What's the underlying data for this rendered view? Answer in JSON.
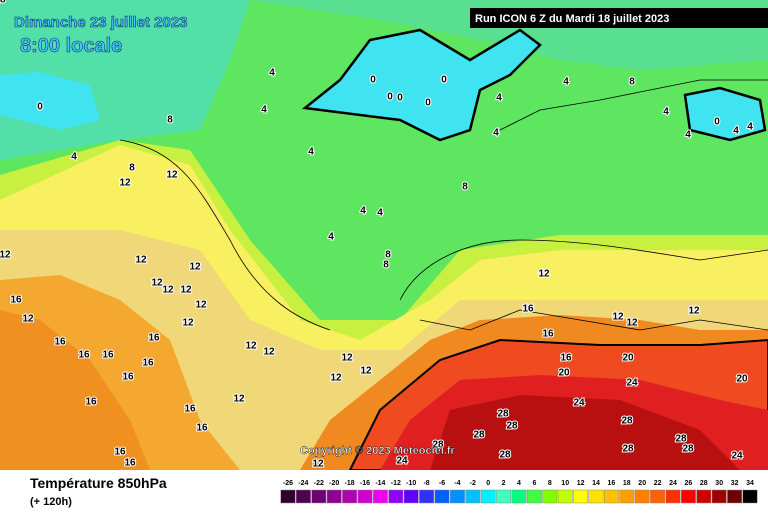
{
  "header": {
    "date": "Dimanche 23 juillet 2023",
    "time": "8:00 locale",
    "run": "Run ICON 6 Z du Mardi 18 juillet 2023"
  },
  "footer": {
    "title": "Température 850hPa",
    "lead": "(+ 120h)",
    "copyright": "Copyright © 2023 Meteociel.fr"
  },
  "legend": {
    "ticks": [
      -26,
      -24,
      -22,
      -20,
      -18,
      -16,
      -14,
      -12,
      -10,
      -8,
      -6,
      -4,
      -2,
      0,
      2,
      4,
      6,
      8,
      10,
      12,
      14,
      16,
      18,
      20,
      22,
      24,
      26,
      28,
      30,
      32,
      34
    ],
    "colors": [
      "#300030",
      "#500050",
      "#700070",
      "#900090",
      "#b000b0",
      "#d000d0",
      "#f000f0",
      "#9000ff",
      "#6000ff",
      "#3030ff",
      "#0060ff",
      "#0090ff",
      "#00c0ff",
      "#00f0ff",
      "#40ffc0",
      "#00ff80",
      "#40ff40",
      "#80ff00",
      "#c0ff00",
      "#ffff00",
      "#ffe000",
      "#ffc000",
      "#ffa000",
      "#ff8000",
      "#ff6000",
      "#ff3000",
      "#ff0000",
      "#d00000",
      "#a00000",
      "#700000",
      "#000000"
    ]
  },
  "contour_labels": [
    0,
    0,
    0,
    0,
    0,
    0,
    0,
    4,
    4,
    4,
    4,
    4,
    4,
    4,
    4,
    4,
    4,
    4,
    4,
    4,
    4,
    8,
    8,
    8,
    8,
    8,
    8,
    12,
    12,
    12,
    12,
    12,
    12,
    12,
    12,
    12,
    12,
    12,
    12,
    12,
    12,
    12,
    12,
    12,
    12,
    12,
    12,
    12,
    12,
    16,
    16,
    16,
    16,
    16,
    16,
    16,
    16,
    16,
    16,
    16,
    16,
    16,
    16,
    16,
    20,
    20,
    20,
    24,
    24,
    24,
    24,
    28,
    28,
    28,
    28,
    28,
    28,
    28,
    28,
    28,
    28
  ]
}
